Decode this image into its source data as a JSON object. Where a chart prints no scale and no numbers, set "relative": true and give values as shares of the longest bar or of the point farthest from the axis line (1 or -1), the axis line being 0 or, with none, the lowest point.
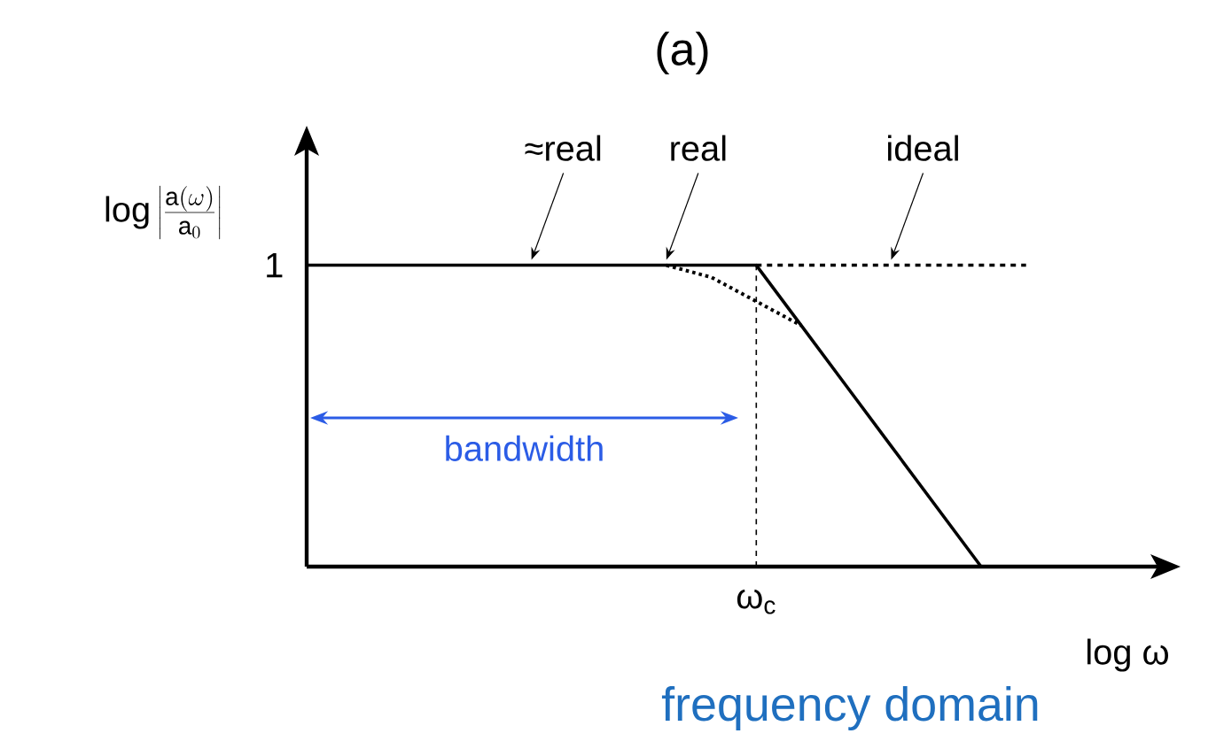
{
  "chart_data": {
    "type": "line",
    "title": "(a)",
    "xlabel": "log ω",
    "ylabel": "\\log\\left|\\frac{\\mathrm{a}(\\omega)}{\\mathrm{a}_0}\\right|",
    "relative": true,
    "categories": [
      null,
      null,
      null,
      null,
      null,
      null,
      null,
      null,
      null,
      null,
      null,
      null,
      null,
      null,
      null,
      null,
      null
    ],
    "series": [
      {
        "name": "≈real",
        "color": "#000000",
        "line_style": "solid",
        "values": [
          1,
          1,
          1,
          1,
          1,
          1,
          1,
          1,
          1,
          1,
          1,
          0.8,
          0.6,
          0.4,
          0.2,
          0,
          null
        ]
      },
      {
        "name": "ideal",
        "color": "#000000",
        "line_style": "dashed",
        "values": [
          null,
          null,
          null,
          null,
          null,
          null,
          null,
          null,
          null,
          null,
          1,
          1,
          1,
          1,
          1,
          1,
          1
        ]
      },
      {
        "name": "real",
        "color": "#000000",
        "line_style": "dotted",
        "values": [
          null,
          null,
          null,
          null,
          null,
          null,
          null,
          null,
          1,
          0.96,
          0.88,
          0.8,
          null,
          null,
          null,
          null,
          null
        ]
      }
    ],
    "ref_lines": [
      {
        "axis": "x",
        "value": "ω$_{c}$",
        "line_style": "dashed"
      }
    ],
    "annotations": [
      "1",
      "bandwidth",
      "frequency domain"
    ]
  }
}
